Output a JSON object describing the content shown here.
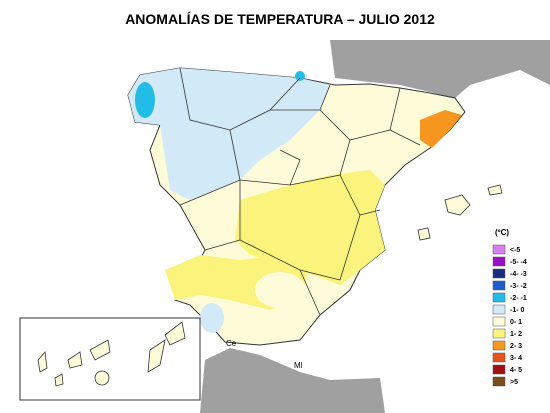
{
  "title": "ANOMALÍAS DE TEMPERATURA – JULIO 2012",
  "legend": {
    "unit": "(ºC)",
    "items": [
      {
        "label": "<-5",
        "color": "#d77ef0"
      },
      {
        "label": "-5- -4",
        "color": "#9a10c8"
      },
      {
        "label": "-4- -3",
        "color": "#1c2c7c"
      },
      {
        "label": "-3- -2",
        "color": "#1e5cd2"
      },
      {
        "label": "-2- -1",
        "color": "#22bce8"
      },
      {
        "label": "-1- 0",
        "color": "#d2eaf8"
      },
      {
        "label": "0- 1",
        "color": "#fdfbd8"
      },
      {
        "label": "1- 2",
        "color": "#fbf47c"
      },
      {
        "label": "2- 3",
        "color": "#f7961e"
      },
      {
        "label": "3- 4",
        "color": "#e6501a"
      },
      {
        "label": "4- 5",
        "color": "#a01010"
      },
      {
        "label": ">5",
        "color": "#7a4a1a"
      }
    ]
  },
  "places": {
    "ceuta": "Ce",
    "melilla": "Ml"
  }
}
